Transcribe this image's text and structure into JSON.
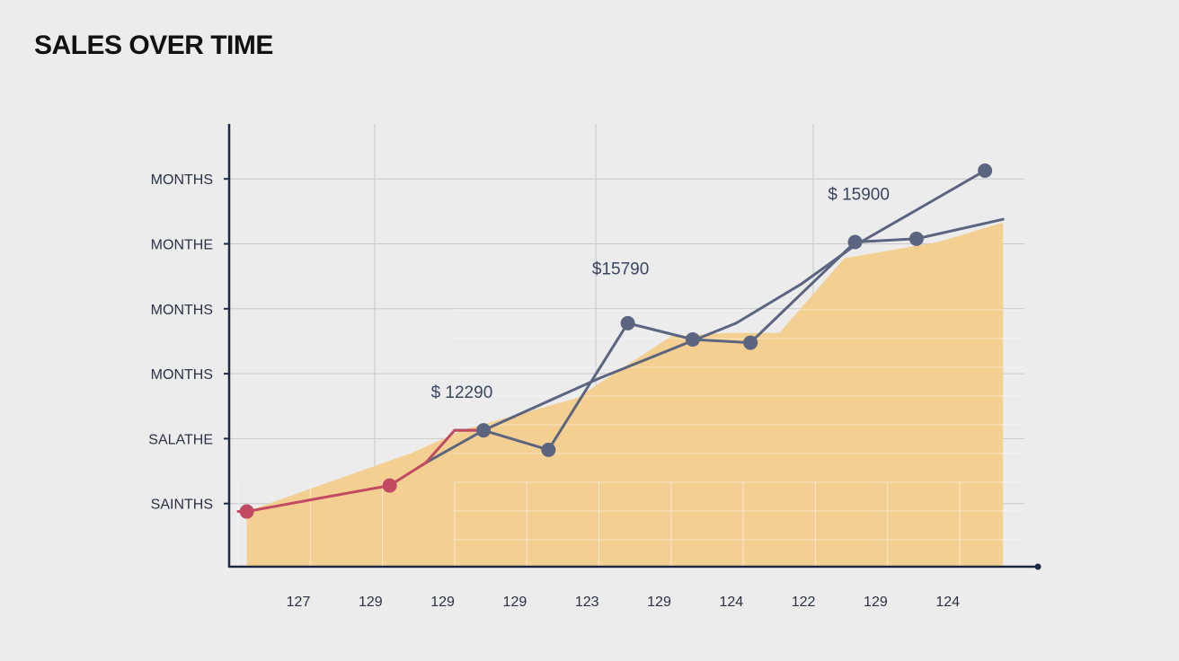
{
  "chart_data": {
    "type": "line",
    "title": "SALES OVER TIME",
    "xlabel": "",
    "ylabel": "",
    "x_tick_labels": [
      "127",
      "129",
      "129",
      "129",
      "123",
      "129",
      "124",
      "122",
      "129",
      "124"
    ],
    "y_tick_labels": [
      "SAINTHS",
      "SALATHE",
      "MONTHS",
      "MONTHS",
      "MONTHE",
      "MONTHS"
    ],
    "y_range": [
      0,
      6.5
    ],
    "grid": true,
    "legend": "none",
    "series": [
      {
        "kind": "area",
        "color": "#f3cf91",
        "points": [
          [
            0.12,
            0.85
          ],
          [
            1.0,
            1.2
          ],
          [
            2.4,
            1.75
          ],
          [
            3.1,
            2.1
          ],
          [
            4.7,
            2.6
          ],
          [
            6.0,
            3.55
          ],
          [
            6.8,
            3.6
          ],
          [
            7.5,
            3.6
          ],
          [
            8.4,
            4.75
          ],
          [
            9.7,
            5.0
          ],
          [
            10.6,
            5.3
          ]
        ]
      },
      {
        "kind": "line",
        "color": "#5b6580",
        "points": [
          [
            3.0,
            2.1
          ],
          [
            3.4,
            2.1
          ],
          [
            4.3,
            1.8
          ],
          [
            5.4,
            3.75
          ],
          [
            6.3,
            3.5
          ],
          [
            7.1,
            3.45
          ],
          [
            8.55,
            5.0
          ],
          [
            9.4,
            5.05
          ],
          [
            10.6,
            5.35
          ]
        ]
      },
      {
        "kind": "line",
        "color": "#5b6580",
        "points": [
          [
            2.6,
            1.6
          ],
          [
            3.4,
            2.1
          ],
          [
            5.0,
            2.9
          ],
          [
            6.9,
            3.75
          ],
          [
            7.8,
            4.35
          ],
          [
            8.55,
            4.95
          ],
          [
            10.35,
            6.1
          ]
        ]
      },
      {
        "kind": "line",
        "color": "#c24a63",
        "points": [
          [
            0.0,
            0.85
          ],
          [
            0.12,
            0.85
          ],
          [
            1.35,
            1.1
          ],
          [
            2.1,
            1.25
          ],
          [
            2.6,
            1.6
          ],
          [
            3.0,
            2.1
          ],
          [
            3.4,
            2.1
          ]
        ]
      }
    ],
    "markers": [
      {
        "x": 0.12,
        "y": 0.85,
        "color": "#c24a63"
      },
      {
        "x": 2.1,
        "y": 1.25,
        "color": "#c24a63"
      },
      {
        "x": 3.4,
        "y": 2.1,
        "color": "#5b6580"
      },
      {
        "x": 4.3,
        "y": 1.8,
        "color": "#5b6580"
      },
      {
        "x": 5.4,
        "y": 3.75,
        "color": "#5b6580"
      },
      {
        "x": 6.3,
        "y": 3.5,
        "color": "#5b6580"
      },
      {
        "x": 7.1,
        "y": 3.45,
        "color": "#5b6580"
      },
      {
        "x": 8.55,
        "y": 5.0,
        "color": "#5b6580"
      },
      {
        "x": 9.4,
        "y": 5.05,
        "color": "#5b6580"
      },
      {
        "x": 10.35,
        "y": 6.1,
        "color": "#5b6580"
      }
    ],
    "annotations": [
      {
        "text": "$ 12290",
        "x": 3.1,
        "y": 2.6
      },
      {
        "text": "$15790",
        "x": 5.3,
        "y": 4.5
      },
      {
        "text": "$ 15900",
        "x": 8.6,
        "y": 5.65
      }
    ]
  },
  "colors": {
    "axis": "#1e2a45",
    "grid": "#c8c8c8",
    "background": "#ececec"
  }
}
